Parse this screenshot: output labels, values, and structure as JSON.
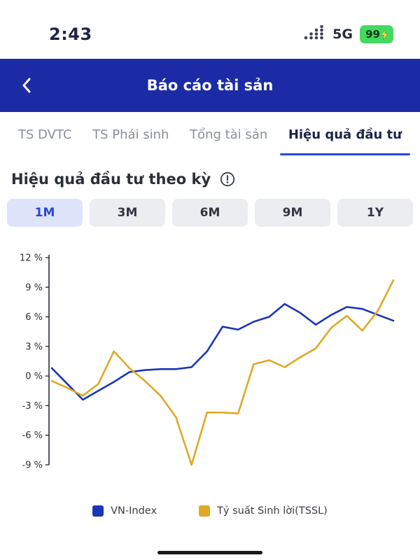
{
  "theme": {
    "primary": "#1B2BA6",
    "accent": "#2C46D8",
    "chip_active_bg": "#DEE5FA",
    "line_blue": "#1B36B8",
    "line_yellow": "#DFA926",
    "battery_green": "#45D95F"
  },
  "status_bar": {
    "time": "2:43",
    "network": "5G",
    "battery_percent": "99"
  },
  "header": {
    "title": "Báo cáo tài sản"
  },
  "tabs": {
    "items": [
      {
        "label": "TS DVTC",
        "active": false
      },
      {
        "label": "TS Phái sinh",
        "active": false
      },
      {
        "label": "Tổng tài sản",
        "active": false
      },
      {
        "label": "Hiệu quả đầu tư",
        "active": true
      }
    ]
  },
  "section": {
    "title": "Hiệu quả đầu tư theo kỳ"
  },
  "periods": {
    "items": [
      {
        "label": "1M",
        "active": true
      },
      {
        "label": "3M",
        "active": false
      },
      {
        "label": "6M",
        "active": false
      },
      {
        "label": "9M",
        "active": false
      },
      {
        "label": "1Y",
        "active": false
      }
    ]
  },
  "chart_data": {
    "type": "line",
    "title": "",
    "xlabel": "",
    "ylabel": "",
    "ylim": [
      -9,
      12
    ],
    "yticks": [
      12,
      9,
      6,
      3,
      0,
      -3,
      -6,
      -9
    ],
    "ytick_suffix": " %",
    "grid": false,
    "legend_position": "bottom",
    "series": [
      {
        "name": "VN-Index",
        "color": "#1B36B8",
        "values": [
          0.8,
          -0.8,
          -2.4,
          -1.5,
          -0.6,
          0.4,
          0.6,
          0.7,
          0.7,
          0.9,
          2.5,
          5.0,
          4.7,
          5.5,
          6.0,
          7.3,
          6.4,
          5.2,
          6.2,
          7.0,
          6.8,
          6.2,
          5.6
        ]
      },
      {
        "name": "Tỷ suất Sinh lời(TSSL)",
        "color": "#DFA926",
        "values": [
          -0.5,
          -1.2,
          -2.0,
          -0.8,
          2.5,
          0.8,
          -0.5,
          -2.0,
          -4.2,
          -9.0,
          -3.7,
          -3.7,
          -3.8,
          1.2,
          1.6,
          0.9,
          1.9,
          2.8,
          4.9,
          6.1,
          4.6,
          6.6,
          9.7
        ]
      }
    ]
  }
}
